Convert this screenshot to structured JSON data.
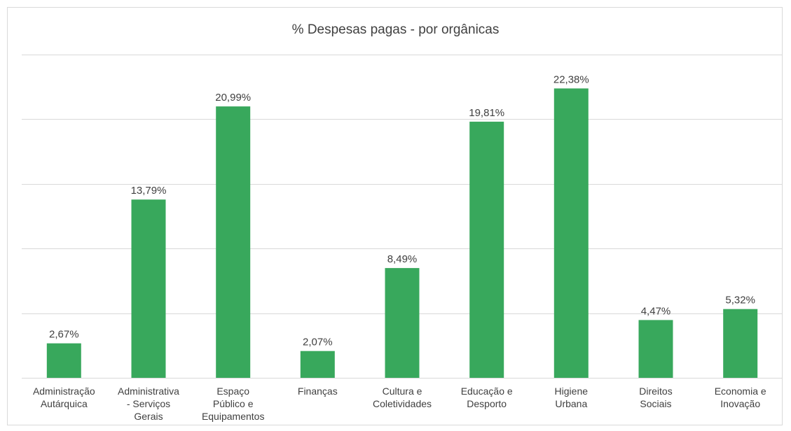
{
  "chart_data": {
    "type": "bar",
    "title": "% Despesas pagas - por orgânicas",
    "categories": [
      [
        "Administração",
        "Autárquica"
      ],
      [
        "Administrativa",
        "- Serviços",
        "Gerais"
      ],
      [
        "Espaço",
        "Público e",
        "Equipamentos"
      ],
      [
        "Finanças"
      ],
      [
        "Cultura e",
        "Coletividades"
      ],
      [
        "Educação e",
        "Desporto"
      ],
      [
        "Higiene",
        "Urbana"
      ],
      [
        "Direitos",
        "Sociais"
      ],
      [
        "Economia e",
        "Inovação"
      ]
    ],
    "values": [
      2.67,
      13.79,
      20.99,
      2.07,
      8.49,
      19.81,
      22.38,
      4.47,
      5.32
    ],
    "data_labels": [
      "2,67%",
      "13,79%",
      "20,99%",
      "2,07%",
      "8,49%",
      "19,81%",
      "22,38%",
      "4,47%",
      "5,32%"
    ],
    "xlabel": "",
    "ylabel": "",
    "ylim": [
      0,
      25
    ],
    "y_gridlines": [
      5,
      10,
      15,
      20,
      25
    ],
    "y_axis_labels_shown": false,
    "grid": true,
    "legend": "none",
    "bar_color": "#38a85c",
    "grid_color": "#d9d9d9",
    "text_color": "#404040"
  }
}
